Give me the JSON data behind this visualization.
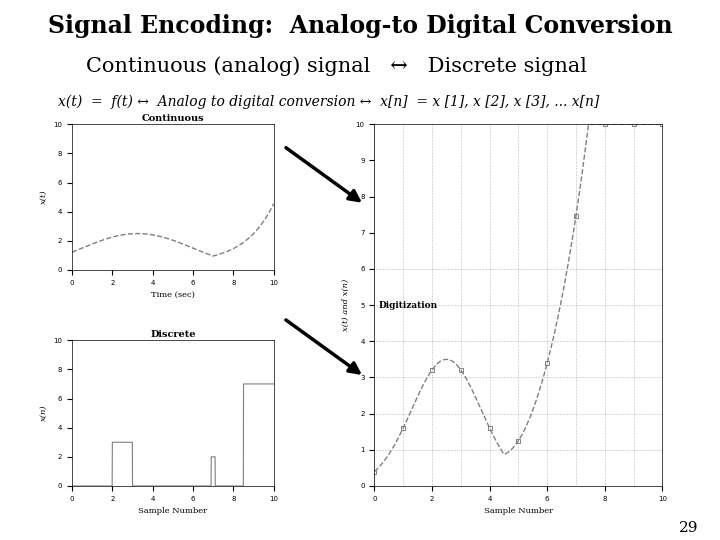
{
  "title": "Signal Encoding:  Analog-to Digital Conversion",
  "line1": "Continuous (analog) signal   ↔   Discrete signal",
  "line2": "x(t)  =  f(t) ↔  Analog to digital conversion ↔  x[n]  = x [1], x [2], x [3], ... x[n]",
  "bg_color": "#ffffff",
  "title_fontsize": 17,
  "line1_fontsize": 15,
  "line2_fontsize": 10,
  "page_number": "29",
  "subplot_titles": [
    "Continuous",
    "Discrete",
    "Digitization"
  ],
  "continuous_xlabel": "Time (sec)",
  "continuous_ylabel": "x(t)",
  "discrete_xlabel": "Sample Number",
  "discrete_ylabel": "x(n)",
  "digitization_xlabel": "Sample Number",
  "digitization_ylabel": "x(t) and x(n)"
}
